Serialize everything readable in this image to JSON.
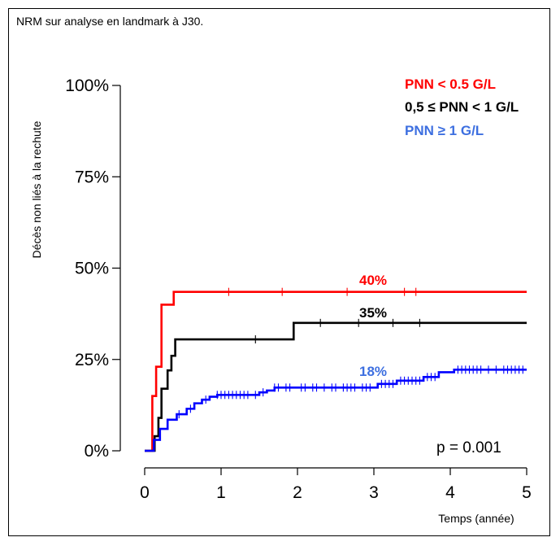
{
  "caption": "NRM sur analyse en landmark à J30.",
  "chart_data": {
    "type": "line",
    "title": "",
    "xlabel": "Temps (année)",
    "ylabel": "Décès non liés à la rechute",
    "xlim": [
      0,
      5
    ],
    "ylim": [
      0,
      100
    ],
    "x_ticks": [
      "0",
      "1",
      "2",
      "3",
      "4",
      "5"
    ],
    "y_ticks": [
      "0%",
      "25%",
      "50%",
      "75%",
      "100%"
    ],
    "grid": false,
    "legend_position": "top-right",
    "p_value_text": "p = 0.001",
    "series": [
      {
        "name": "PNN < 0.5 G/L",
        "color": "#ff0000",
        "label_text": "40%",
        "steps": [
          [
            0,
            0
          ],
          [
            0.1,
            15
          ],
          [
            0.15,
            23
          ],
          [
            0.22,
            40
          ],
          [
            0.38,
            43.5
          ],
          [
            5,
            43.5
          ]
        ],
        "censor_x": [
          1.1,
          1.8,
          2.65,
          3.4,
          3.55
        ]
      },
      {
        "name": "0,5 ≤ PNN < 1 G/L",
        "color": "#000000",
        "label_text": "35%",
        "steps": [
          [
            0,
            0
          ],
          [
            0.13,
            4
          ],
          [
            0.18,
            9
          ],
          [
            0.22,
            17
          ],
          [
            0.3,
            22
          ],
          [
            0.35,
            26
          ],
          [
            0.4,
            30.5
          ],
          [
            1.95,
            35
          ],
          [
            5,
            35
          ]
        ],
        "censor_x": [
          1.45,
          2.3,
          2.8,
          3.25,
          3.6
        ]
      },
      {
        "name": "PNN ≥ 1 G/L",
        "color": "#0000ff",
        "label_color": "#3d6fe0",
        "label_text": "18%",
        "steps": [
          [
            0,
            0
          ],
          [
            0.12,
            3
          ],
          [
            0.2,
            6
          ],
          [
            0.3,
            8.5
          ],
          [
            0.42,
            10
          ],
          [
            0.55,
            11.5
          ],
          [
            0.65,
            13
          ],
          [
            0.75,
            14
          ],
          [
            0.85,
            14.8
          ],
          [
            0.95,
            15.3
          ],
          [
            1.5,
            16
          ],
          [
            1.6,
            16.5
          ],
          [
            1.7,
            17.3
          ],
          [
            3.05,
            18.3
          ],
          [
            3.3,
            19.2
          ],
          [
            3.65,
            20.2
          ],
          [
            3.85,
            21.5
          ],
          [
            4.05,
            22.2
          ],
          [
            5,
            22.2
          ]
        ],
        "censor_x": [
          0.45,
          0.6,
          0.8,
          0.95,
          1.0,
          1.05,
          1.1,
          1.15,
          1.2,
          1.25,
          1.3,
          1.35,
          1.45,
          1.55,
          1.7,
          1.75,
          1.85,
          1.9,
          2.05,
          2.1,
          2.2,
          2.25,
          2.35,
          2.45,
          2.5,
          2.6,
          2.65,
          2.7,
          2.75,
          2.85,
          2.9,
          2.95,
          3.1,
          3.15,
          3.2,
          3.25,
          3.35,
          3.4,
          3.45,
          3.5,
          3.55,
          3.6,
          3.7,
          3.75,
          3.8,
          4.1,
          4.15,
          4.2,
          4.25,
          4.3,
          4.35,
          4.4,
          4.5,
          4.6,
          4.7,
          4.75,
          4.8,
          4.85,
          4.9,
          4.95
        ]
      }
    ]
  }
}
